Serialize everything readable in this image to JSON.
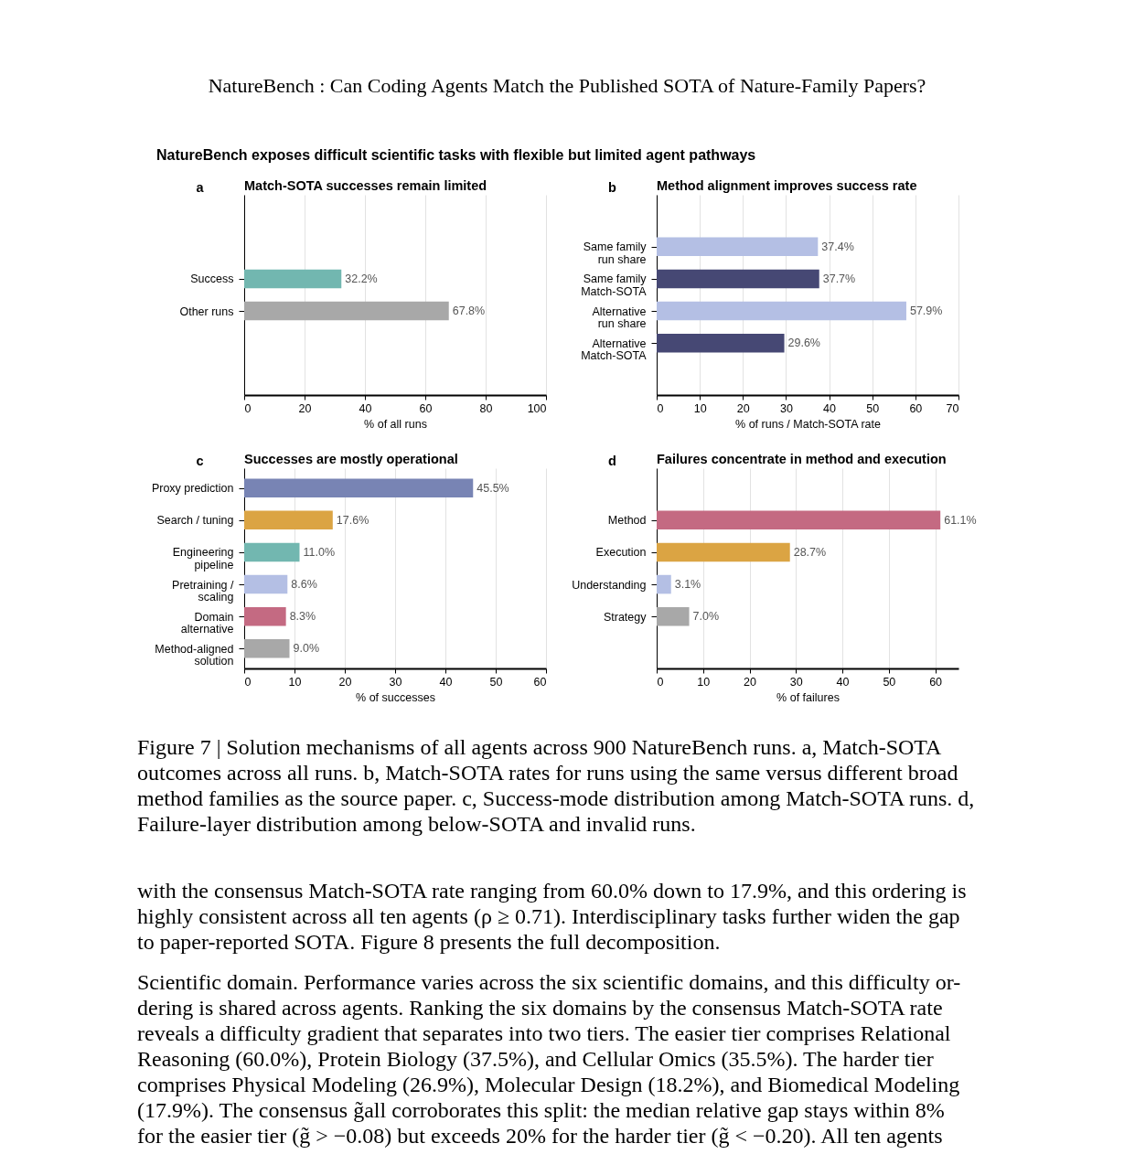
{
  "chart_data": [
    {
      "type": "other",
      "title": "NatureBench exposes difficult scientific tasks with flexible but limited agent pathways",
      "annotations": [
        "NatureBench : Can Coding Agents Match the Published SOTA of Nature-Family Papers?"
      ]
    },
    {
      "type": "bar",
      "orientation": "horizontal",
      "title": "Match-SOTA successes remain limited",
      "annotations": [
        "a"
      ],
      "categories": [
        "Success",
        "Other runs"
      ],
      "values": [
        32.2,
        67.8
      ],
      "colors": [
        "#72b7b0",
        "#a8a8a8"
      ],
      "value_labels": [
        "32.2%",
        "67.8%"
      ],
      "xlabel": "% of all runs",
      "xlim": [
        0,
        100
      ],
      "xticks": [
        0,
        20,
        40,
        60,
        80,
        100
      ],
      "grid": "x"
    },
    {
      "type": "bar",
      "orientation": "horizontal",
      "title": "Method alignment improves success rate",
      "annotations": [
        "b"
      ],
      "categories": [
        "Same family\nrun share",
        "Same family\nMatch-SOTA",
        "Alternative\nrun share",
        "Alternative\nMatch-SOTA"
      ],
      "values": [
        37.4,
        37.7,
        57.9,
        29.6
      ],
      "colors": [
        "#b4bfe4",
        "#464874",
        "#b4bfe4",
        "#464874"
      ],
      "value_labels": [
        "37.4%",
        "37.7%",
        "57.9%",
        "29.6%"
      ],
      "xlabel": "% of runs / Match-SOTA rate",
      "xlim": [
        0,
        70
      ],
      "xticks": [
        0,
        10,
        20,
        30,
        40,
        50,
        60,
        70
      ],
      "grid": "x"
    },
    {
      "type": "bar",
      "orientation": "horizontal",
      "title": "Successes are mostly operational",
      "annotations": [
        "c"
      ],
      "categories": [
        "Proxy prediction",
        "Search / tuning",
        "Engineering\npipeline",
        "Pretraining /\nscaling",
        "Domain\nalternative",
        "Method-aligned\nsolution"
      ],
      "values": [
        45.5,
        17.6,
        11.0,
        8.6,
        8.3,
        9.0
      ],
      "colors": [
        "#7884b4",
        "#dba443",
        "#72b7b0",
        "#b4bfe4",
        "#c46a82",
        "#a8a8a8"
      ],
      "value_labels": [
        "45.5%",
        "17.6%",
        "11.0%",
        "8.6%",
        "8.3%",
        "9.0%"
      ],
      "xlabel": "% of successes",
      "xlim": [
        0,
        60
      ],
      "xticks": [
        0,
        10,
        20,
        30,
        40,
        50,
        60
      ],
      "grid": "x"
    },
    {
      "type": "bar",
      "orientation": "horizontal",
      "title": "Failures concentrate in method and execution",
      "annotations": [
        "d"
      ],
      "categories": [
        "Method",
        "Execution",
        "Understanding",
        "Strategy"
      ],
      "values": [
        61.1,
        28.7,
        3.1,
        7.0
      ],
      "colors": [
        "#c46a82",
        "#dba443",
        "#b4bfe4",
        "#a8a8a8"
      ],
      "value_labels": [
        "61.1%",
        "28.7%",
        "3.1%",
        "7.0%"
      ],
      "xlabel": "% of failures",
      "xlim": [
        0,
        65
      ],
      "xticks": [
        0,
        10,
        20,
        30,
        40,
        50,
        60
      ],
      "grid": "x"
    },
    {
      "type": "other",
      "annotations": [
        "Figure 7 | Solution mechanisms of all agents across 900 NatureBench runs. a, Match-SOTA",
        "outcomes across all runs. b, Match-SOTA rates for runs using the same versus different broad",
        "method families as the source paper. c, Success-mode distribution among Match-SOTA runs. d,",
        "Failure-layer distribution among below-SOTA and invalid runs."
      ]
    },
    {
      "type": "other",
      "annotations": [
        "with the consensus Match-SOTA rate ranging from 60.0% down to 17.9%, and this ordering is",
        "highly consistent across all ten agents (ρ ≥ 0.71). Interdisciplinary tasks further widen the gap",
        "to paper-reported SOTA. Figure 8 presents the full decomposition."
      ]
    },
    {
      "type": "other",
      "annotations": [
        "Scientific domain. Performance varies across the six scientific domains, and this difficulty or-",
        "dering is shared across agents. Ranking the six domains by the consensus Match-SOTA rate",
        "reveals a difficulty gradient that separates into two tiers. The easier tier comprises Relational",
        "Reasoning (60.0%), Protein Biology (37.5%), and Cellular Omics (35.5%). The harder tier",
        "comprises Physical Modeling (26.9%), Molecular Design (18.2%), and Biomedical Modeling",
        "(17.9%). The consensus g̃all corroborates this split: the median relative gap stays within 8%",
        "for the easier tier (g̃ > −0.08) but exceeds 20% for the harder tier (g̃ < −0.20). All ten agents"
      ]
    }
  ]
}
